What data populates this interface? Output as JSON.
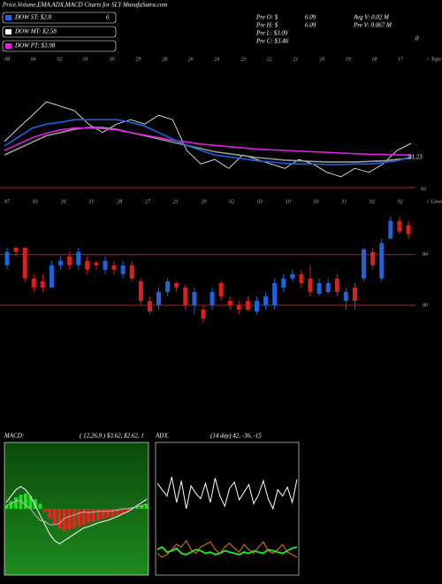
{
  "header": {
    "title": "Price,Volume,EMA,ADX,MACD Charts for SLY MunafaSutra.com",
    "legend": [
      {
        "name": "DOW ST: $2.8",
        "color": "#1e64dc"
      },
      {
        "name": "DOW MT: $2.58",
        "color": "#ffffff"
      },
      {
        "name": "DOW PT: $3.98",
        "color": "#e020e0"
      }
    ],
    "legend_note": "6",
    "info": [
      [
        "Pre  O: $",
        "6.09",
        "Avg V: 0.02  M"
      ],
      [
        "Pre  H: $",
        "6.09",
        "Pre  V: 0.067 M"
      ],
      [
        "Pre  L: $3.09"
      ],
      [
        "Pre  C: $3.46"
      ]
    ],
    "corner_note": "0"
  },
  "chart_data": [
    {
      "type": "line",
      "side_label": "< Tops",
      "date_labels": [
        "08",
        "04",
        "02",
        "01",
        "30",
        "29",
        "28",
        "26",
        "24",
        "23",
        "22",
        "21",
        "20",
        "19",
        "18",
        "17"
      ],
      "annotations": [
        "91.23",
        "93"
      ],
      "ylim": [
        80,
        100
      ],
      "series": [
        {
          "name": "Price",
          "color": "#ffffff",
          "values": [
            87.6,
            89.7,
            91.7,
            93.8,
            93.1,
            92.4,
            90.3,
            89.0,
            90.3,
            91.0,
            90.3,
            91.7,
            91.0,
            86.2,
            84.1,
            84.8,
            83.4,
            85.5,
            84.8,
            84.1,
            83.4,
            84.8,
            84.1,
            82.8,
            82.1,
            83.4,
            82.8,
            84.1,
            86.2,
            87.3
          ]
        },
        {
          "name": "EMA long",
          "color": "#999999",
          "values": [
            85.5,
            86.5,
            87.5,
            88.5,
            89.0,
            89.5,
            89.8,
            89.8,
            89.5,
            89.0,
            88.5,
            88.0,
            87.5,
            87.0,
            86.5,
            86.0,
            85.7,
            85.4,
            85.1,
            84.9,
            84.7,
            84.6,
            84.5,
            84.4,
            84.4,
            84.4,
            84.5,
            84.6,
            84.8,
            85.0
          ]
        },
        {
          "name": "EMA mid",
          "color": "#e020e0",
          "values": [
            86.2,
            87.2,
            88.2,
            88.9,
            89.4,
            89.7,
            89.7,
            89.6,
            89.4,
            89.0,
            88.6,
            88.2,
            87.8,
            87.5,
            87.2,
            87.0,
            86.8,
            86.6,
            86.4,
            86.3,
            86.2,
            86.1,
            86.0,
            85.9,
            85.8,
            85.7,
            85.6,
            85.6,
            85.5,
            85.5
          ]
        },
        {
          "name": "EMA short",
          "color": "#1e64dc",
          "values": [
            86.9,
            88.3,
            89.7,
            90.3,
            90.6,
            91.0,
            91.0,
            91.0,
            91.0,
            90.6,
            90.0,
            89.0,
            88.0,
            87.0,
            86.2,
            85.5,
            85.2,
            84.9,
            84.6,
            84.4,
            84.2,
            84.1,
            84.1,
            84.0,
            84.0,
            84.1,
            84.1,
            84.3,
            84.6,
            85.2
          ]
        }
      ]
    },
    {
      "type": "candlestick",
      "side_label": "< Lows",
      "date_labels": [
        "07",
        "03",
        "30",
        "31",
        "28",
        "27",
        "21",
        "20",
        "02",
        "03",
        "10",
        "03",
        "31",
        "02",
        "02"
      ],
      "ylim": [
        77.9,
        87.9
      ],
      "yticks": [
        80,
        84
      ],
      "up_color": "#1e64dc",
      "down_color": "#dc1e1e",
      "open": [
        83.16,
        84.56,
        84.56,
        82.11,
        81.89,
        81.4,
        83.16,
        83.86,
        83.16,
        83.51,
        83.37,
        82.81,
        83.16,
        82.46,
        83.16,
        81.89,
        80.35,
        80.0,
        81.05,
        81.75,
        81.4,
        80.0,
        79.65,
        80.0,
        81.75,
        80.35,
        80.0,
        80.35,
        79.51,
        80.0,
        80.0,
        81.4,
        82.11,
        82.46,
        82.11,
        80.91,
        81.05,
        82.11,
        80.35,
        81.4,
        82.11,
        84.21,
        82.11,
        85.26,
        86.67,
        86.32
      ],
      "high": [
        84.56,
        84.56,
        84.56,
        82.46,
        82.46,
        83.51,
        83.86,
        84.21,
        84.56,
        83.86,
        83.51,
        83.86,
        83.51,
        83.51,
        83.51,
        82.11,
        80.7,
        81.4,
        82.11,
        81.89,
        81.61,
        81.4,
        80.0,
        81.4,
        81.89,
        80.7,
        80.35,
        80.7,
        80.7,
        81.05,
        82.11,
        82.46,
        82.81,
        82.81,
        83.16,
        82.11,
        82.11,
        82.46,
        81.4,
        81.75,
        84.56,
        84.56,
        85.26,
        87.02,
        87.02,
        86.67
      ],
      "low": [
        82.81,
        83.86,
        81.89,
        81.05,
        81.05,
        81.4,
        82.81,
        82.81,
        82.81,
        82.46,
        82.81,
        82.46,
        82.46,
        82.11,
        81.89,
        80.0,
        79.3,
        79.65,
        80.7,
        81.05,
        79.65,
        79.3,
        78.6,
        79.65,
        80.35,
        79.65,
        79.3,
        79.51,
        79.3,
        79.65,
        79.65,
        81.05,
        81.89,
        81.4,
        80.7,
        80.7,
        80.91,
        80.7,
        79.65,
        79.65,
        81.89,
        82.81,
        81.89,
        85.26,
        85.61,
        85.26
      ],
      "close": [
        84.21,
        84.21,
        82.11,
        81.4,
        81.4,
        83.16,
        83.51,
        83.16,
        84.21,
        82.81,
        83.16,
        83.51,
        82.81,
        83.16,
        82.11,
        80.35,
        79.51,
        81.05,
        81.89,
        81.4,
        80.0,
        81.05,
        78.95,
        81.05,
        80.7,
        80.0,
        79.65,
        79.65,
        80.35,
        80.7,
        81.75,
        82.11,
        82.46,
        81.75,
        81.05,
        81.75,
        81.75,
        81.05,
        81.05,
        80.35,
        84.42,
        83.16,
        84.91,
        86.67,
        85.82,
        85.61
      ]
    },
    {
      "type": "macd",
      "title": "MACD:",
      "params": "( 12,26,9 ) $3.62, $2.62, 1",
      "ylim": [
        -1,
        1
      ],
      "histogram": [
        0.05,
        0.12,
        0.18,
        0.22,
        0.24,
        0.2,
        0.15,
        0.08,
        -0.05,
        -0.15,
        -0.25,
        -0.32,
        -0.35,
        -0.33,
        -0.3,
        -0.28,
        -0.25,
        -0.22,
        -0.2,
        -0.18,
        -0.16,
        -0.14,
        -0.12,
        -0.1,
        -0.08,
        -0.05,
        -0.02,
        0.02,
        0.05,
        0.08
      ],
      "pos_color": "#22dd22",
      "neg_color": "#ee2222",
      "series": [
        {
          "name": "MACD",
          "color": "#ffffff",
          "values": [
            0.1,
            0.2,
            0.3,
            0.35,
            0.3,
            0.2,
            0.05,
            -0.1,
            -0.25,
            -0.4,
            -0.5,
            -0.55,
            -0.5,
            -0.45,
            -0.4,
            -0.35,
            -0.3,
            -0.28,
            -0.25,
            -0.22,
            -0.2,
            -0.18,
            -0.15,
            -0.12,
            -0.08,
            -0.05,
            0,
            0.05,
            0.1,
            0.15
          ]
        },
        {
          "name": "Signal",
          "color": "#bbbbbb",
          "values": [
            0.05,
            0.08,
            0.12,
            0.13,
            0.06,
            0,
            -0.1,
            -0.18,
            -0.2,
            -0.25,
            -0.25,
            -0.23,
            -0.15,
            -0.12,
            -0.1,
            -0.07,
            -0.05,
            -0.06,
            -0.05,
            -0.04,
            -0.04,
            -0.04,
            -0.03,
            -0.02,
            0,
            0,
            0.02,
            0.03,
            0.05,
            0.07
          ]
        }
      ]
    },
    {
      "type": "adx",
      "title": "ADX",
      "params": "(14 day) 42, -36, -15",
      "ylim": [
        0,
        100
      ],
      "series": [
        {
          "name": "ADX",
          "color": "#ffffff",
          "values": [
            70,
            65,
            60,
            75,
            55,
            72,
            50,
            68,
            62,
            58,
            70,
            55,
            74,
            60,
            52,
            66,
            71,
            57,
            63,
            69,
            54,
            61,
            72,
            58,
            50,
            65,
            60,
            67,
            55,
            73
          ]
        },
        {
          "name": "+DI",
          "color": "#22ee22",
          "values": [
            18,
            20,
            16,
            17,
            19,
            15,
            14,
            16,
            18,
            17,
            15,
            16,
            14,
            15,
            17,
            16,
            15,
            14,
            16,
            15,
            17,
            16,
            15,
            18,
            17,
            16,
            15,
            17,
            19,
            20
          ]
        },
        {
          "name": "-DI",
          "color": "#e08020",
          "values": [
            15,
            12,
            14,
            18,
            22,
            20,
            25,
            18,
            15,
            20,
            22,
            24,
            18,
            15,
            20,
            23,
            19,
            16,
            22,
            18,
            15,
            20,
            24,
            17,
            15,
            18,
            22,
            16,
            14,
            12
          ]
        }
      ]
    }
  ]
}
